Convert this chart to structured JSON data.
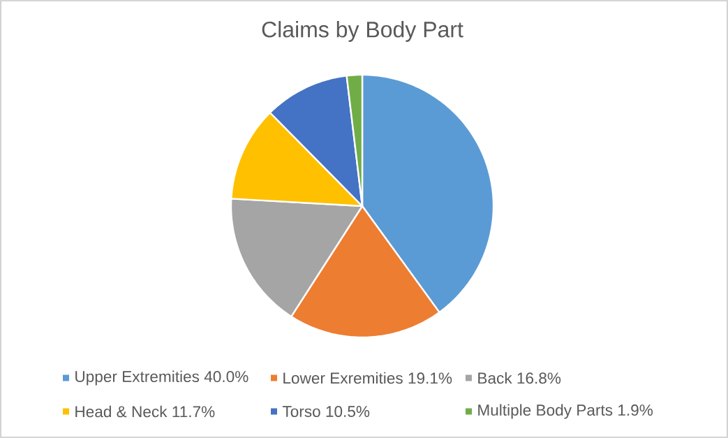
{
  "chart_data": {
    "type": "pie",
    "title": "Claims by Body Part",
    "categories": [
      "Upper Extremities 40.0%",
      "Lower Exremities 19.1%",
      "Back 16.8%",
      "Head & Neck 11.7%",
      "Torso 10.5%",
      "Multiple Body Parts 1.9%"
    ],
    "values": [
      40.0,
      19.1,
      16.8,
      11.7,
      10.5,
      1.9
    ],
    "colors": [
      "#5b9bd5",
      "#ed7d31",
      "#a5a5a5",
      "#ffc000",
      "#4472c4",
      "#70ad47"
    ],
    "legend": "bottom"
  }
}
